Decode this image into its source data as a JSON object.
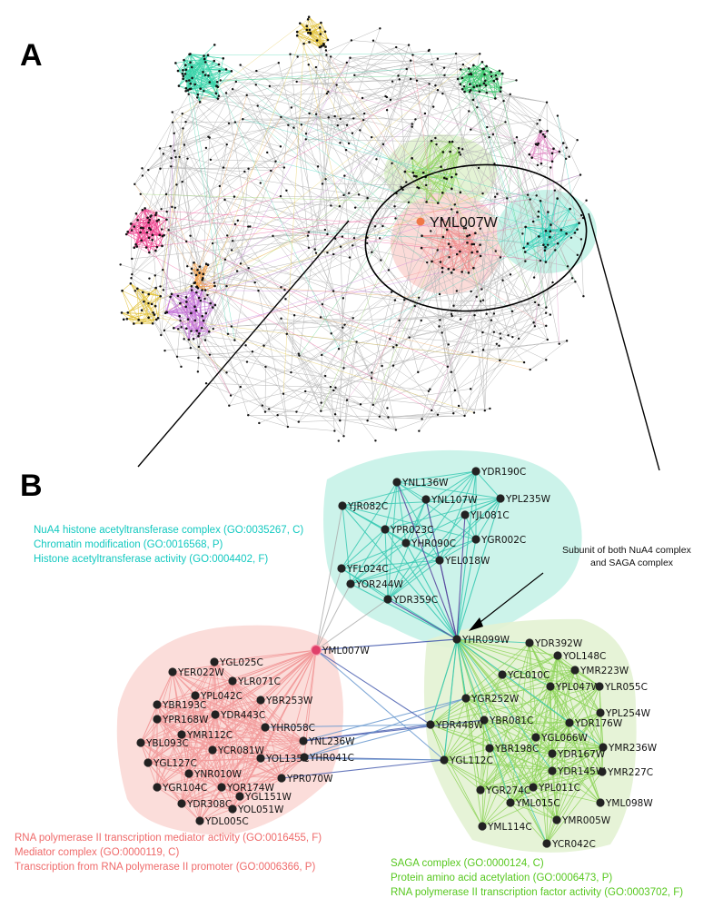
{
  "panel_a": {
    "letter": "A",
    "focus_protein": "YML007W"
  },
  "panel_b": {
    "letter": "B",
    "clusters": {
      "nua4": {
        "color": "#2fd0b8",
        "hull": "#c6f2e8",
        "annotations": [
          "NuA4 histone acetyltransferase complex (GO:0035267, C)",
          "Chromatin modification (GO:0016568, P)",
          "Histone acetyltransferase activity (GO:0004402, F)"
        ],
        "nodes": [
          "YNL136W",
          "YDR190C",
          "YJR082C",
          "YNL107W",
          "YPL235W",
          "YPR023C",
          "YJL081C",
          "YHR090C",
          "YGR002C",
          "YEL018W",
          "YFL024C",
          "YOR244W",
          "YDR359C"
        ]
      },
      "mediator": {
        "color": "#f08a8a",
        "hull": "#fbd9d6",
        "annotations": [
          "RNA polymerase II transcription mediator activity (GO:0016455, F)",
          "Mediator complex (GO:0000119, C)",
          "Transcription from RNA polymerase II promoter (GO:0006366, P)"
        ],
        "nodes": [
          "YGL025C",
          "YER022W",
          "YLR071C",
          "YPL042C",
          "YBR193C",
          "YBR253W",
          "YDR443C",
          "YPR168W",
          "YMR112C",
          "YHR058C",
          "YBL093C",
          "YCR081W",
          "YNL236W",
          "YOL135C",
          "YGL127C",
          "YHR041C",
          "YNR010W",
          "YOR174W",
          "YPR070W",
          "YGR104C",
          "YGL151W",
          "YDR308C",
          "YOL051W",
          "YDL005C"
        ]
      },
      "saga": {
        "color": "#8ed45a",
        "hull": "#e3f2d3",
        "annotations": [
          "SAGA complex (GO:0000124, C)",
          "Protein amino acid acetylation (GO:0006473, P)",
          "RNA polymerase II transcription factor activity (GO:0003702, F)"
        ],
        "nodes": [
          "YDR392W",
          "YOL148C",
          "YCL010C",
          "YMR223W",
          "YPL047W",
          "YLR055C",
          "YGR252W",
          "YPL254W",
          "YDR176W",
          "YBR081C",
          "YDR448W",
          "YGL066W",
          "YMR236W",
          "YBR198C",
          "YDR167W",
          "YGL112C",
          "YDR145W",
          "YMR227C",
          "YPL011C",
          "YGR274C",
          "YML015C",
          "YML098W",
          "YMR005W",
          "YML114C",
          "YCR042C"
        ]
      }
    },
    "hub_nodes": {
      "focus": "YML007W",
      "shared": "YHR099W"
    },
    "callout": [
      "Subunit of both NuA4 complex",
      "and SAGA complex"
    ]
  }
}
